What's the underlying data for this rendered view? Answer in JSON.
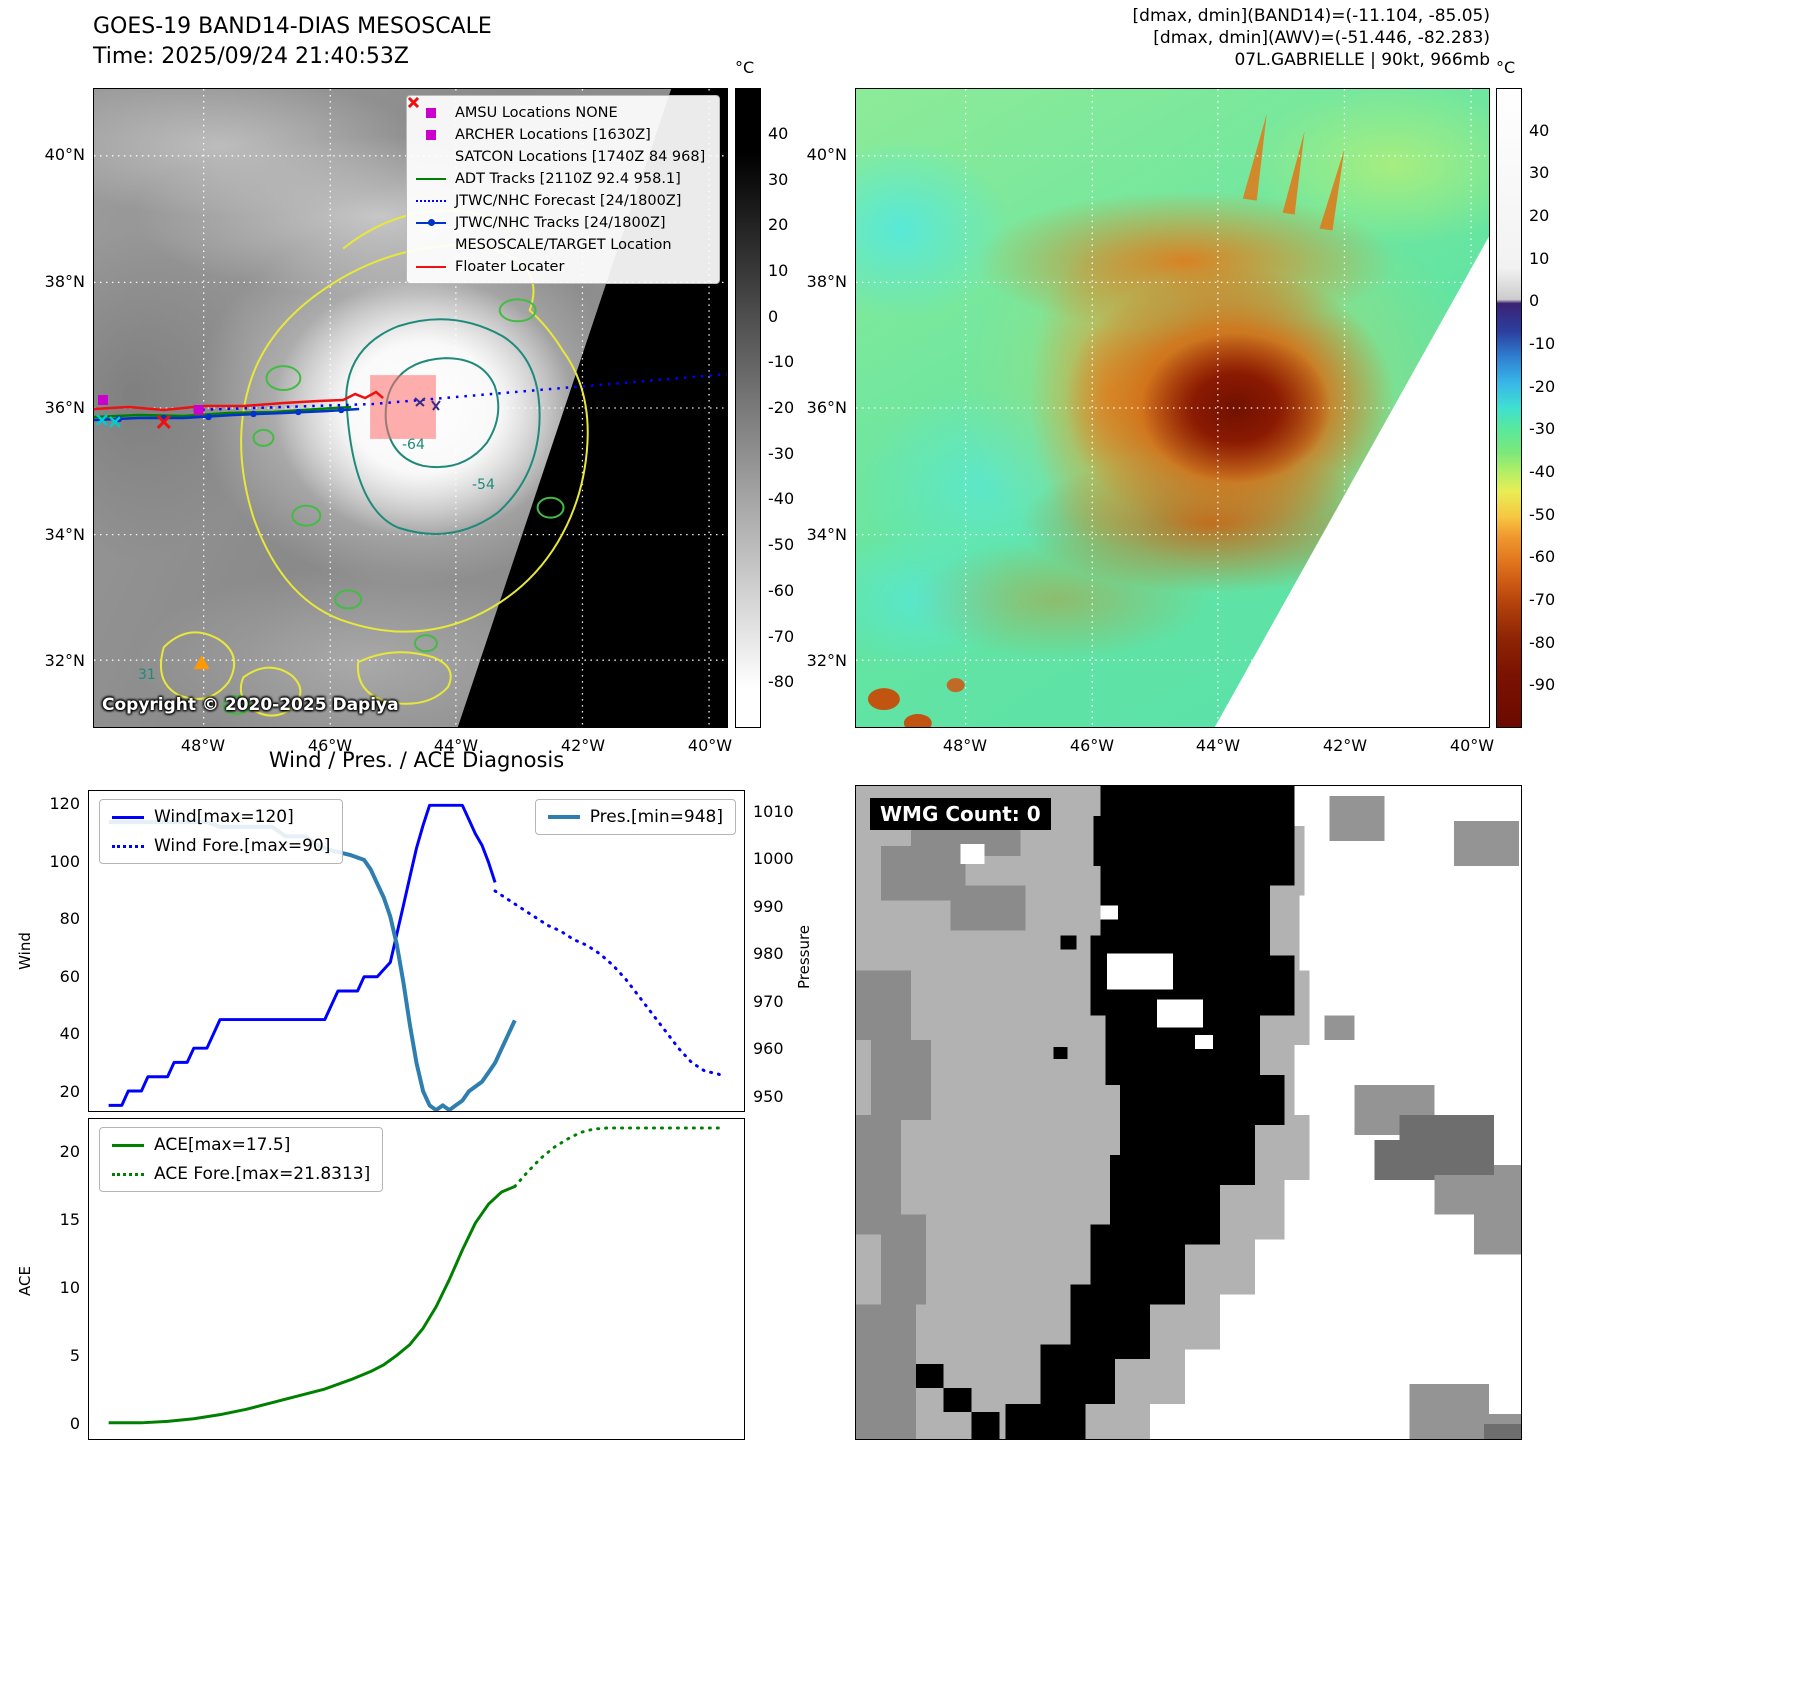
{
  "band14": {
    "title": "GOES-19 BAND14-DIAS MESOSCALE",
    "time_label": "Time: 2025/09/24 21:40:53Z",
    "copyright": "Copyright © 2020-2025 Dapiya",
    "colorbar_unit": "°C",
    "colorbar_ticks": [
      "40",
      "30",
      "20",
      "10",
      "0",
      "-10",
      "-20",
      "-30",
      "-40",
      "-50",
      "-60",
      "-70",
      "-80"
    ],
    "contour_labels": {
      "inner": "-64",
      "outer": "-54",
      "misc": "31"
    },
    "legend_items": [
      {
        "label": "AMSU Locations NONE",
        "marker": "square",
        "color": "#cc00cc"
      },
      {
        "label": "ARCHER Locations [1630Z]",
        "marker": "square",
        "color": "#cc00cc"
      },
      {
        "label": "SATCON Locations [1740Z 84 968]",
        "marker": "x",
        "color": "#00bbbb"
      },
      {
        "label": "ADT Tracks [2110Z 92.4 958.1]",
        "marker": "line",
        "color": "#008000"
      },
      {
        "label": "JTWC/NHC Forecast [24/1800Z]",
        "marker": "dotted-line",
        "color": "#0000ff"
      },
      {
        "label": "JTWC/NHC Tracks [24/1800Z]",
        "marker": "line-dot",
        "color": "#0033cc"
      },
      {
        "label": "MESOSCALE/TARGET Location",
        "marker": "x",
        "color": "#ee1111"
      },
      {
        "label": "Floater Locater",
        "marker": "line",
        "color": "#ee1111"
      }
    ]
  },
  "awv": {
    "header_line1": "[dmax, dmin](BAND14)=(-11.104, -85.05)",
    "header_line2": "[dmax, dmin](AWV)=(-51.446, -82.283)",
    "header_line3": "07L.GABRIELLE | 90kt, 966mb",
    "colorbar_unit": "°C",
    "colorbar_ticks": [
      "40",
      "30",
      "20",
      "10",
      "0",
      "-10",
      "-20",
      "-30",
      "-40",
      "-50",
      "-60",
      "-70",
      "-80",
      "-90"
    ]
  },
  "geo": {
    "lat_ticks": [
      "40°N",
      "38°N",
      "36°N",
      "34°N",
      "32°N"
    ],
    "lon_ticks": [
      "48°W",
      "46°W",
      "44°W",
      "42°W",
      "40°W"
    ]
  },
  "wmg": {
    "count_label": "WMG Count: 0"
  },
  "chart_data": [
    {
      "type": "line",
      "title": "Wind / Pres. / ACE Diagnosis",
      "xlim": [
        0,
        100
      ],
      "grid": false,
      "legend_positions": [
        "upper left",
        "upper right"
      ],
      "axes": {
        "wind": {
          "label": "Wind",
          "side": "left",
          "lim": [
            13,
            125
          ],
          "ticks": [
            120,
            100,
            80,
            60,
            40,
            20
          ]
        },
        "pressure": {
          "label": "Pressure",
          "side": "right",
          "lim": [
            946.8,
            1014.6
          ],
          "ticks": [
            1010,
            1000,
            990,
            980,
            970,
            960,
            950
          ]
        }
      },
      "series": [
        {
          "name": "Wind[max=120]",
          "axis": "wind",
          "color": "#0000ff",
          "style": "solid",
          "width": 3,
          "x": [
            3,
            5,
            6,
            8,
            9,
            11,
            12,
            13,
            15,
            16,
            18,
            20,
            22,
            36,
            38,
            41,
            42,
            44,
            46,
            47,
            48,
            49,
            50,
            51,
            52,
            57,
            58,
            59,
            60,
            61,
            62
          ],
          "values": [
            15,
            15,
            20,
            20,
            25,
            25,
            25,
            30,
            30,
            35,
            35,
            45,
            45,
            45,
            55,
            55,
            60,
            60,
            65,
            75,
            85,
            95,
            105,
            113,
            120,
            120,
            115,
            110,
            106,
            100,
            93
          ]
        },
        {
          "name": "Wind Fore.[max=90]",
          "axis": "wind",
          "color": "#0000ff",
          "style": "dotted",
          "width": 3,
          "x": [
            62,
            64,
            66,
            68,
            70,
            72,
            74,
            76,
            78,
            80,
            82,
            84,
            86,
            88,
            90,
            92,
            94,
            96,
            97
          ],
          "values": [
            90,
            87,
            84,
            81,
            78,
            76,
            73,
            71,
            68,
            64,
            59,
            53,
            47,
            41,
            35,
            30,
            27,
            26,
            25
          ]
        },
        {
          "name": "Pres.[min=948]",
          "axis": "pressure",
          "color": "#2e7eb0",
          "style": "solid",
          "width": 4,
          "x": [
            3,
            18,
            20,
            28,
            30,
            33,
            35,
            37,
            40,
            42,
            43,
            44,
            45,
            46,
            47,
            48,
            49,
            50,
            51,
            52,
            53,
            54,
            55,
            56,
            57,
            58,
            60,
            61,
            62,
            63,
            64,
            65
          ],
          "values": [
            1008,
            1008,
            1007,
            1007,
            1005,
            1005,
            1003,
            1002,
            1001,
            1000,
            998,
            995,
            992,
            988,
            982,
            974,
            965,
            957,
            951,
            948,
            947,
            948,
            947,
            948,
            949,
            951,
            953,
            955,
            957,
            960,
            963,
            966
          ]
        }
      ]
    },
    {
      "type": "line",
      "xlim": [
        0,
        100
      ],
      "grid": false,
      "axes": {
        "ace": {
          "label": "ACE",
          "side": "left",
          "lim": [
            -1.2,
            22.5
          ],
          "ticks": [
            20,
            15,
            10,
            5,
            0
          ]
        }
      },
      "series": [
        {
          "name": "ACE[max=17.5]",
          "axis": "ace",
          "color": "#008000",
          "style": "solid",
          "width": 3,
          "x": [
            3,
            8,
            12,
            16,
            20,
            24,
            28,
            32,
            36,
            40,
            43,
            45,
            47,
            49,
            51,
            53,
            55,
            57,
            59,
            61,
            63,
            65
          ],
          "values": [
            0,
            0,
            0.1,
            0.3,
            0.6,
            1.0,
            1.5,
            2.0,
            2.5,
            3.2,
            3.8,
            4.3,
            5.0,
            5.8,
            7.0,
            8.6,
            10.6,
            12.8,
            14.8,
            16.2,
            17.1,
            17.5
          ]
        },
        {
          "name": "ACE Fore.[max=21.8313]",
          "axis": "ace",
          "color": "#008000",
          "style": "dotted",
          "width": 3,
          "x": [
            65,
            67,
            69,
            71,
            73,
            75,
            77,
            79,
            82,
            86,
            90,
            94,
            97
          ],
          "values": [
            17.5,
            18.6,
            19.6,
            20.4,
            21.0,
            21.5,
            21.75,
            21.83,
            21.83,
            21.83,
            21.83,
            21.83,
            21.83
          ]
        }
      ]
    }
  ]
}
